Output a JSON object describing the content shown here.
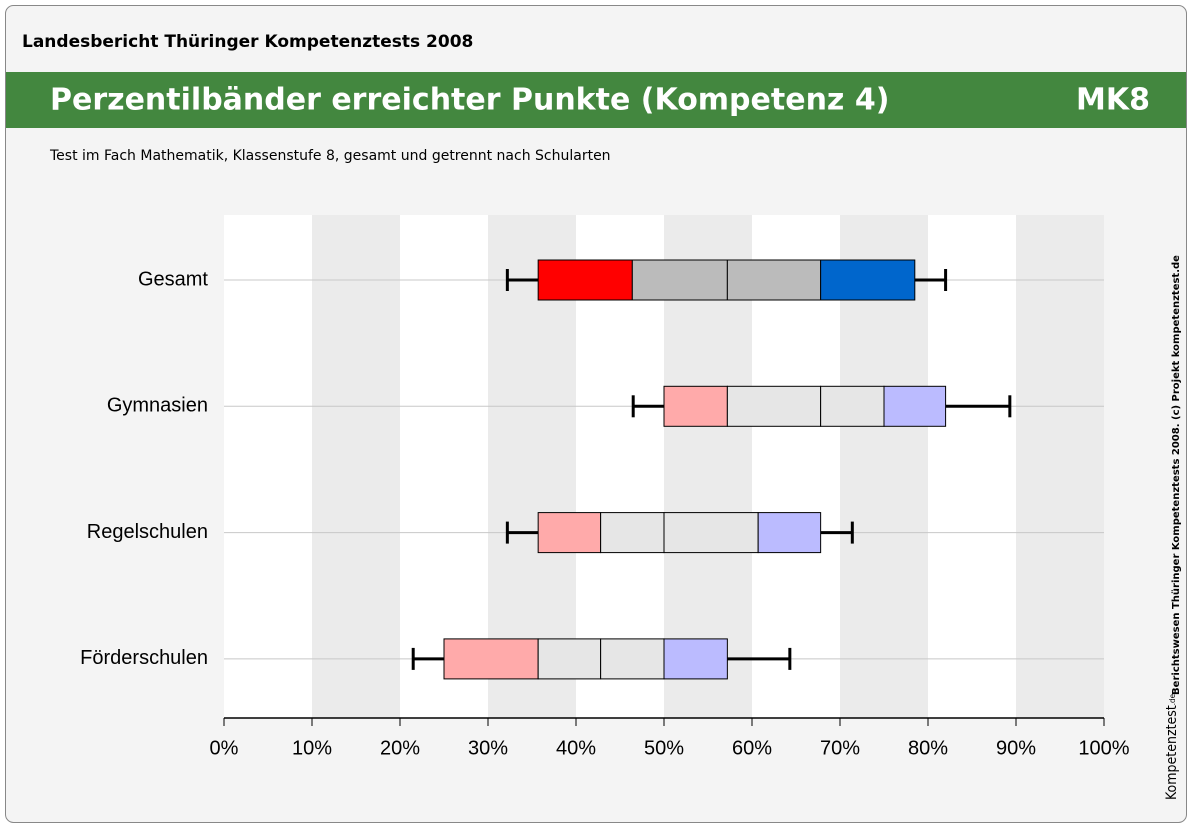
{
  "header": {
    "report": "Landesbericht Thüringer Kompetenztests 2008",
    "code": "MK8",
    "side_note": "Berichtswesen Thüringer Kompetenztests 2008. (c) Projekt kompetenztest.de",
    "logo": "Kompetenztest",
    "logo_suffix": ".de"
  },
  "chart_data": {
    "type": "box",
    "title": "Perzentilbänder erreichter Punkte (Kompetenz 4)",
    "subtitle": "Test im Fach Mathematik, Klassenstufe 8, gesamt und getrennt nach Schularten",
    "boxes": [
      {
        "name": "Gesamt",
        "values": [
          32.2,
          35.7,
          46.4,
          57.2,
          67.8,
          78.5,
          82.0
        ],
        "colors": [
          "#ff0000",
          "#bbbbbb",
          "#bbbbbb",
          "#0066cc"
        ]
      },
      {
        "name": "Gymnasien",
        "values": [
          46.5,
          50.0,
          57.2,
          67.8,
          75.0,
          82.0,
          89.3
        ],
        "colors": [
          "#ffaaaa",
          "#e6e6e6",
          "#e6e6e6",
          "#bbbbff"
        ]
      },
      {
        "name": "Regelschulen",
        "values": [
          32.2,
          35.7,
          42.8,
          50.0,
          60.7,
          67.8,
          71.4
        ],
        "colors": [
          "#ffaaaa",
          "#e6e6e6",
          "#e6e6e6",
          "#bbbbff"
        ]
      },
      {
        "name": "Förderschulen",
        "values": [
          21.5,
          25.0,
          35.7,
          42.8,
          50.0,
          57.2,
          64.3
        ],
        "colors": [
          "#ffaaaa",
          "#e6e6e6",
          "#e6e6e6",
          "#bbbbff"
        ]
      }
    ],
    "xlim": [
      0,
      100
    ],
    "xticks": [
      {
        "value": 0,
        "label": "0%"
      },
      {
        "value": 10,
        "label": "10%"
      },
      {
        "value": 20,
        "label": "20%"
      },
      {
        "value": 30,
        "label": "30%"
      },
      {
        "value": 40,
        "label": "40%"
      },
      {
        "value": 50,
        "label": "50%"
      },
      {
        "value": 60,
        "label": "60%"
      },
      {
        "value": 70,
        "label": "70%"
      },
      {
        "value": 80,
        "label": "80%"
      },
      {
        "value": 90,
        "label": "90%"
      },
      {
        "value": 100,
        "label": "100%"
      }
    ],
    "grid": true
  }
}
